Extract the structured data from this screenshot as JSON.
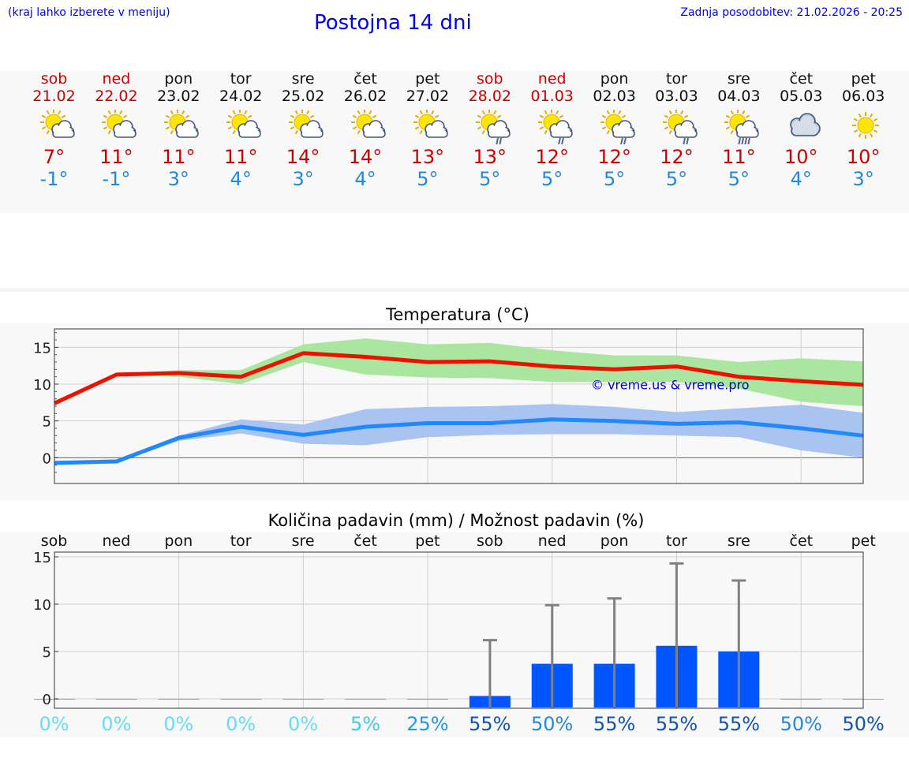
{
  "header": {
    "hint": "(kraj lahko izberete v meniju)",
    "title": "Postojna 14 dni",
    "updated": "Zadnja posodobitev: 21.02.2026 - 20:25"
  },
  "days": [
    {
      "name": "sob",
      "date": "21.02",
      "tmax": "7°",
      "tmin": "-1°",
      "icon": "sun-cloud-icon",
      "weekend": true
    },
    {
      "name": "ned",
      "date": "22.02",
      "tmax": "11°",
      "tmin": "-1°",
      "icon": "sun-cloud-icon",
      "weekend": true
    },
    {
      "name": "pon",
      "date": "23.02",
      "tmax": "11°",
      "tmin": "3°",
      "icon": "sun-cloud-icon",
      "weekend": false
    },
    {
      "name": "tor",
      "date": "24.02",
      "tmax": "11°",
      "tmin": "4°",
      "icon": "sun-cloud-icon",
      "weekend": false
    },
    {
      "name": "sre",
      "date": "25.02",
      "tmax": "14°",
      "tmin": "3°",
      "icon": "sun-cloud-icon",
      "weekend": false
    },
    {
      "name": "čet",
      "date": "26.02",
      "tmax": "14°",
      "tmin": "4°",
      "icon": "sun-cloud-icon",
      "weekend": false
    },
    {
      "name": "pet",
      "date": "27.02",
      "tmax": "13°",
      "tmin": "5°",
      "icon": "sun-cloud-icon",
      "weekend": false
    },
    {
      "name": "sob",
      "date": "28.02",
      "tmax": "13°",
      "tmin": "5°",
      "icon": "sun-cloud-rain-icon",
      "weekend": true
    },
    {
      "name": "ned",
      "date": "01.03",
      "tmax": "12°",
      "tmin": "5°",
      "icon": "sun-cloud-light-rain-icon",
      "weekend": true
    },
    {
      "name": "pon",
      "date": "02.03",
      "tmax": "12°",
      "tmin": "5°",
      "icon": "sun-cloud-light-rain-icon",
      "weekend": false
    },
    {
      "name": "tor",
      "date": "03.03",
      "tmax": "12°",
      "tmin": "5°",
      "icon": "sun-cloud-rain-icon",
      "weekend": false
    },
    {
      "name": "sre",
      "date": "04.03",
      "tmax": "11°",
      "tmin": "5°",
      "icon": "sun-cloud-heavy-rain-icon",
      "weekend": false
    },
    {
      "name": "čet",
      "date": "05.03",
      "tmax": "10°",
      "tmin": "4°",
      "icon": "cloud-icon",
      "weekend": false
    },
    {
      "name": "pet",
      "date": "06.03",
      "tmax": "10°",
      "tmin": "3°",
      "icon": "sun-icon",
      "weekend": false
    }
  ],
  "colors": {
    "max_line": "#ee1100",
    "max_band": "#aae6a0",
    "min_line": "#2288ff",
    "min_band": "#aac4f2",
    "bar": "#0055ff",
    "whisker": "#808080",
    "watermark": "#0000cc"
  },
  "chart_data": [
    {
      "type": "line",
      "title": "Temperatura (°C)",
      "watermark": "© vreme.us & vreme.pro",
      "x": [
        0,
        1,
        2,
        3,
        4,
        5,
        6,
        7,
        8,
        9,
        10,
        11,
        12,
        13
      ],
      "ylim": [
        -3.5,
        17.5
      ],
      "yticks": [
        0,
        5,
        10,
        15
      ],
      "grid": true,
      "series": [
        {
          "name": "max",
          "values": [
            7.4,
            11.3,
            11.5,
            11.0,
            14.2,
            13.7,
            13.0,
            13.1,
            12.4,
            12.0,
            12.4,
            11.0,
            10.4,
            9.9
          ],
          "band_low": [
            7.4,
            11.2,
            11.0,
            10.0,
            13.0,
            11.3,
            10.9,
            10.8,
            10.3,
            10.3,
            10.3,
            9.4,
            7.6,
            7.0
          ],
          "band_high": [
            7.6,
            11.4,
            11.9,
            11.9,
            15.4,
            16.2,
            15.4,
            15.6,
            14.6,
            13.9,
            13.9,
            13.0,
            13.5,
            13.1
          ]
        },
        {
          "name": "min",
          "values": [
            -0.7,
            -0.5,
            2.7,
            4.2,
            3.1,
            4.2,
            4.7,
            4.7,
            5.2,
            5.0,
            4.6,
            4.8,
            4.0,
            3.0
          ],
          "band_low": [
            -1.0,
            -0.7,
            2.3,
            3.3,
            1.9,
            1.7,
            2.8,
            3.1,
            3.2,
            3.2,
            3.0,
            2.8,
            1.0,
            0.0
          ],
          "band_high": [
            -0.6,
            -0.4,
            3.0,
            5.2,
            4.5,
            6.6,
            6.9,
            7.0,
            7.3,
            6.9,
            6.2,
            6.7,
            7.2,
            6.1
          ]
        }
      ]
    },
    {
      "type": "bar",
      "title": "Količina padavin (mm) / Možnost padavin (%)",
      "categories": [
        "sob",
        "ned",
        "pon",
        "tor",
        "sre",
        "čet",
        "pet",
        "sob",
        "ned",
        "pon",
        "tor",
        "sre",
        "čet",
        "pet"
      ],
      "values": [
        0,
        0,
        0,
        0,
        0,
        0,
        0,
        0.3,
        3.7,
        3.7,
        5.6,
        5.0,
        0,
        0
      ],
      "max_values": [
        0,
        0,
        0,
        0,
        0,
        0,
        0,
        6.2,
        9.9,
        10.6,
        14.3,
        12.5,
        0,
        0
      ],
      "probability": [
        "0%",
        "0%",
        "0%",
        "0%",
        "0%",
        "5%",
        "25%",
        "55%",
        "50%",
        "55%",
        "55%",
        "55%",
        "50%",
        "50%"
      ],
      "probability_colors": [
        "#66ddee",
        "#66ddee",
        "#66ddee",
        "#66ddee",
        "#66ddee",
        "#44c8e8",
        "#2299dd",
        "#1155aa",
        "#2288dd",
        "#1155aa",
        "#1155aa",
        "#1155aa",
        "#2288dd",
        "#1155aa"
      ],
      "ylim": [
        -1.0,
        15.5
      ],
      "yticks": [
        0,
        5,
        10,
        15
      ],
      "grid": true
    }
  ]
}
